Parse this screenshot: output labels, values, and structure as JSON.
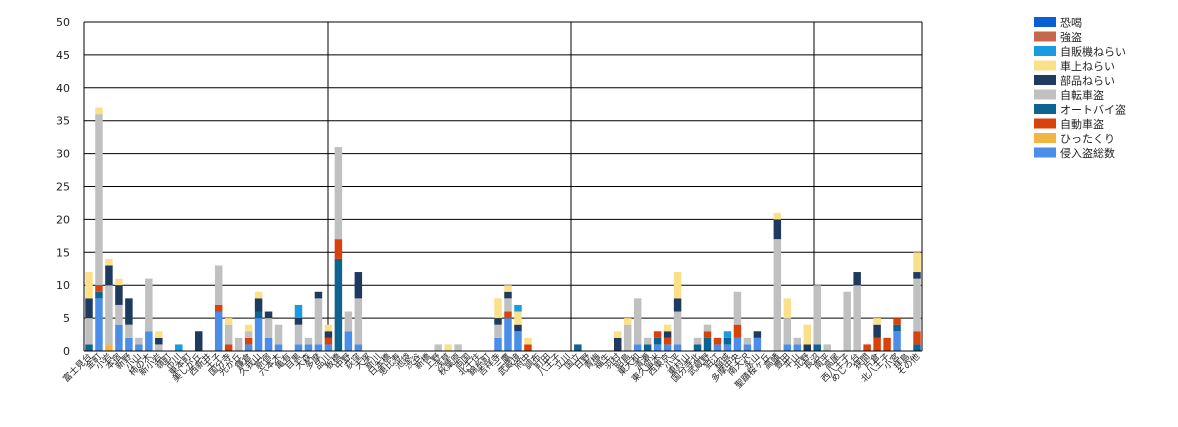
{
  "chart_data": {
    "type": "bar",
    "stacked": true,
    "ylim": [
      0,
      50
    ],
    "yticks": [
      0,
      5,
      10,
      15,
      20,
      25,
      30,
      35,
      40,
      45,
      50
    ],
    "grid": "horizontal",
    "legend": "right",
    "categories": [
      "富士見台",
      "金町",
      "小岩",
      "本宿",
      "新野",
      "小山",
      "柿の木",
      "新小岩",
      "嶺町",
      "市川",
      "東本町",
      "美しが丘",
      "西新井",
      "王子",
      "国分寺",
      "光が丘",
      "鎌倉",
      "久我山",
      "新宿",
      "六本木",
      "亀有",
      "目黒",
      "大森",
      "多摩",
      "品川",
      "板橋",
      "中野",
      "荻窪",
      "大塚",
      "新川",
      "日本橋",
      "恵比寿",
      "池袋",
      "渋谷",
      "新橋",
      "上野",
      "浅草",
      "秋葉原",
      "両国",
      "北千住",
      "錦糸町",
      "吉祥寺",
      "三鷹",
      "武蔵境",
      "府中",
      "調布",
      "町田",
      "八王子",
      "立川",
      "国立",
      "日野",
      "青梅",
      "福生",
      "羽村",
      "昭島",
      "東大和",
      "清瀬",
      "東久留米",
      "西東京",
      "小平",
      "東村山",
      "国分寺北",
      "武蔵野",
      "狛江",
      "稲城",
      "多摩中央",
      "南大沢",
      "永山",
      "聖蹟桜ヶ丘",
      "高幡",
      "豊田",
      "平山",
      "北野",
      "長沼",
      "南平",
      "高尾",
      "西八王子",
      "めじろ台",
      "狭間",
      "片倉",
      "北八王子",
      "小宮",
      "拝島",
      "その他"
    ],
    "series": [
      {
        "name": "恐喝",
        "color": "#0a5fd6",
        "values": [
          0,
          0,
          0,
          0,
          0,
          0,
          0,
          0,
          0,
          0,
          0,
          0,
          0,
          0,
          0,
          0,
          0,
          0,
          0,
          0,
          0,
          0,
          0,
          0,
          0,
          0,
          0,
          0,
          0,
          0,
          0,
          0,
          0,
          0,
          0,
          0,
          0,
          0,
          0,
          0,
          0,
          0,
          0,
          0,
          0,
          0,
          0,
          0,
          0,
          0,
          0,
          0,
          0,
          0,
          0,
          0,
          0,
          0,
          0,
          0,
          0,
          0,
          0,
          0,
          0,
          0,
          0,
          0,
          0,
          0,
          0,
          0,
          0,
          0,
          0,
          0,
          0,
          0,
          0,
          0,
          0,
          0,
          0,
          0
        ]
      },
      {
        "name": "強盗",
        "color": "#c8684a",
        "values": [
          0,
          0,
          0,
          0,
          0,
          0,
          0,
          0,
          0,
          0,
          0,
          0,
          0,
          0,
          0,
          0,
          0,
          0,
          0,
          0,
          0,
          0,
          0,
          0,
          0,
          0,
          0,
          0,
          0,
          0,
          0,
          0,
          0,
          0,
          0,
          0,
          0,
          0,
          0,
          0,
          0,
          0,
          0,
          0,
          0,
          0,
          0,
          0,
          0,
          0,
          0,
          0,
          0,
          0,
          0,
          0,
          0,
          0,
          0,
          0,
          0,
          0,
          0,
          0,
          0,
          0,
          0,
          0,
          0,
          0,
          0,
          0,
          0,
          0,
          0,
          0,
          0,
          0,
          0,
          0,
          0,
          0,
          0,
          0
        ]
      },
      {
        "name": "自販機ねらい",
        "color": "#1b9bdf",
        "values": [
          0,
          0,
          0,
          0,
          0,
          0,
          0,
          0,
          0,
          1,
          0,
          0,
          0,
          0,
          0,
          0,
          0,
          0,
          0,
          0,
          0,
          2,
          0,
          0,
          0,
          0,
          0,
          0,
          0,
          0,
          0,
          0,
          0,
          0,
          0,
          0,
          0,
          0,
          0,
          0,
          0,
          0,
          0,
          1,
          0,
          0,
          0,
          0,
          0,
          0,
          0,
          0,
          0,
          0,
          0,
          0,
          0,
          0,
          0,
          0,
          0,
          0,
          0,
          0,
          1,
          0,
          0,
          0,
          0,
          0,
          0,
          0,
          0,
          0,
          0,
          0,
          0,
          0,
          0,
          0,
          0,
          0,
          0,
          0
        ]
      },
      {
        "name": "車上ねらい",
        "color": "#fbe08a",
        "values": [
          4,
          1,
          1,
          1,
          0,
          0,
          0,
          1,
          0,
          0,
          0,
          0,
          0,
          0,
          1,
          0,
          1,
          1,
          0,
          0,
          0,
          0,
          0,
          0,
          1,
          0,
          0,
          0,
          0,
          0,
          0,
          0,
          0,
          0,
          0,
          0,
          1,
          0,
          0,
          0,
          0,
          3,
          1,
          2,
          1,
          0,
          0,
          0,
          0,
          0,
          0,
          0,
          0,
          1,
          1,
          0,
          0,
          0,
          1,
          4,
          0,
          0,
          0,
          0,
          0,
          0,
          0,
          0,
          0,
          1,
          3,
          0,
          3,
          0,
          0,
          0,
          0,
          0,
          0,
          1,
          0,
          0,
          0,
          3
        ]
      },
      {
        "name": "部品ねらい",
        "color": "#1f3a5f",
        "values": [
          3,
          0,
          3,
          3,
          4,
          0,
          0,
          1,
          0,
          0,
          0,
          3,
          0,
          0,
          0,
          0,
          0,
          2,
          1,
          0,
          0,
          1,
          0,
          1,
          1,
          0,
          0,
          4,
          0,
          0,
          0,
          0,
          0,
          0,
          0,
          0,
          0,
          0,
          0,
          0,
          0,
          1,
          1,
          1,
          0,
          0,
          0,
          0,
          0,
          0,
          0,
          0,
          0,
          2,
          0,
          0,
          0,
          0,
          1,
          2,
          0,
          0,
          0,
          0,
          0,
          0,
          0,
          1,
          0,
          3,
          0,
          0,
          1,
          0,
          0,
          0,
          0,
          2,
          0,
          2,
          0,
          0,
          0,
          1
        ]
      },
      {
        "name": "自転車盗",
        "color": "#c0c0c0",
        "values": [
          4,
          26,
          9,
          3,
          2,
          1,
          8,
          1,
          0,
          0,
          0,
          0,
          0,
          6,
          3,
          2,
          1,
          0,
          3,
          3,
          0,
          3,
          1,
          7,
          0,
          14,
          3,
          7,
          0,
          0,
          0,
          0,
          0,
          0,
          0,
          1,
          0,
          1,
          0,
          0,
          0,
          2,
          2,
          0,
          0,
          0,
          0,
          0,
          0,
          0,
          0,
          0,
          0,
          0,
          4,
          7,
          1,
          0,
          0,
          5,
          0,
          1,
          1,
          0,
          0,
          5,
          1,
          0,
          0,
          17,
          4,
          1,
          0,
          9,
          1,
          0,
          9,
          10,
          0,
          0,
          0,
          0,
          0,
          8
        ]
      },
      {
        "name": "オートバイ盗",
        "color": "#0b6491",
        "values": [
          1,
          1,
          0,
          0,
          0,
          0,
          0,
          0,
          0,
          0,
          0,
          0,
          0,
          0,
          0,
          0,
          0,
          1,
          0,
          0,
          0,
          0,
          0,
          0,
          0,
          14,
          0,
          0,
          0,
          0,
          0,
          0,
          0,
          0,
          0,
          0,
          0,
          0,
          0,
          0,
          0,
          0,
          0,
          0,
          0,
          0,
          0,
          0,
          0,
          1,
          0,
          0,
          0,
          0,
          0,
          0,
          1,
          1,
          0,
          0,
          0,
          1,
          2,
          0,
          1,
          0,
          0,
          0,
          0,
          0,
          0,
          0,
          0,
          1,
          0,
          0,
          0,
          0,
          0,
          0,
          0,
          1,
          0,
          1
        ]
      },
      {
        "name": "自動車盗",
        "color": "#d9420b",
        "values": [
          0,
          1,
          0,
          0,
          0,
          0,
          0,
          0,
          0,
          0,
          0,
          0,
          0,
          1,
          1,
          0,
          1,
          0,
          0,
          0,
          0,
          0,
          0,
          0,
          1,
          3,
          0,
          0,
          0,
          0,
          0,
          0,
          0,
          0,
          0,
          0,
          0,
          0,
          0,
          0,
          0,
          0,
          1,
          0,
          1,
          0,
          0,
          0,
          0,
          0,
          0,
          0,
          0,
          0,
          0,
          0,
          0,
          1,
          1,
          0,
          0,
          0,
          1,
          1,
          0,
          2,
          0,
          0,
          0,
          0,
          0,
          0,
          0,
          0,
          0,
          0,
          0,
          0,
          1,
          2,
          2,
          1,
          0,
          2
        ]
      },
      {
        "name": "ひったくり",
        "color": "#f2b542",
        "values": [
          0,
          0,
          1,
          0,
          0,
          0,
          0,
          0,
          0,
          0,
          0,
          0,
          0,
          0,
          0,
          0,
          0,
          0,
          0,
          0,
          0,
          0,
          0,
          0,
          0,
          0,
          0,
          0,
          0,
          0,
          0,
          0,
          0,
          0,
          0,
          0,
          0,
          0,
          0,
          0,
          0,
          0,
          0,
          0,
          0,
          0,
          0,
          0,
          0,
          0,
          0,
          0,
          0,
          0,
          0,
          0,
          0,
          0,
          0,
          0,
          0,
          0,
          0,
          0,
          0,
          0,
          0,
          0,
          0,
          0,
          0,
          0,
          0,
          0,
          0,
          0,
          0,
          0,
          0,
          0,
          0,
          0,
          0,
          0
        ]
      },
      {
        "name": "侵入盗総数",
        "color": "#4a8ee8",
        "values": [
          0,
          8,
          0,
          4,
          2,
          1,
          3,
          0,
          0,
          0,
          0,
          0,
          0,
          6,
          0,
          0,
          1,
          5,
          2,
          1,
          0,
          1,
          1,
          1,
          1,
          0,
          3,
          1,
          0,
          0,
          0,
          0,
          0,
          0,
          0,
          0,
          0,
          0,
          0,
          0,
          0,
          2,
          5,
          3,
          0,
          0,
          0,
          0,
          0,
          0,
          0,
          0,
          0,
          0,
          0,
          1,
          0,
          1,
          1,
          1,
          0,
          0,
          0,
          1,
          1,
          2,
          1,
          2,
          0,
          0,
          1,
          1,
          0,
          0,
          0,
          0,
          0,
          0,
          0,
          0,
          0,
          3,
          0,
          0
        ]
      }
    ]
  }
}
